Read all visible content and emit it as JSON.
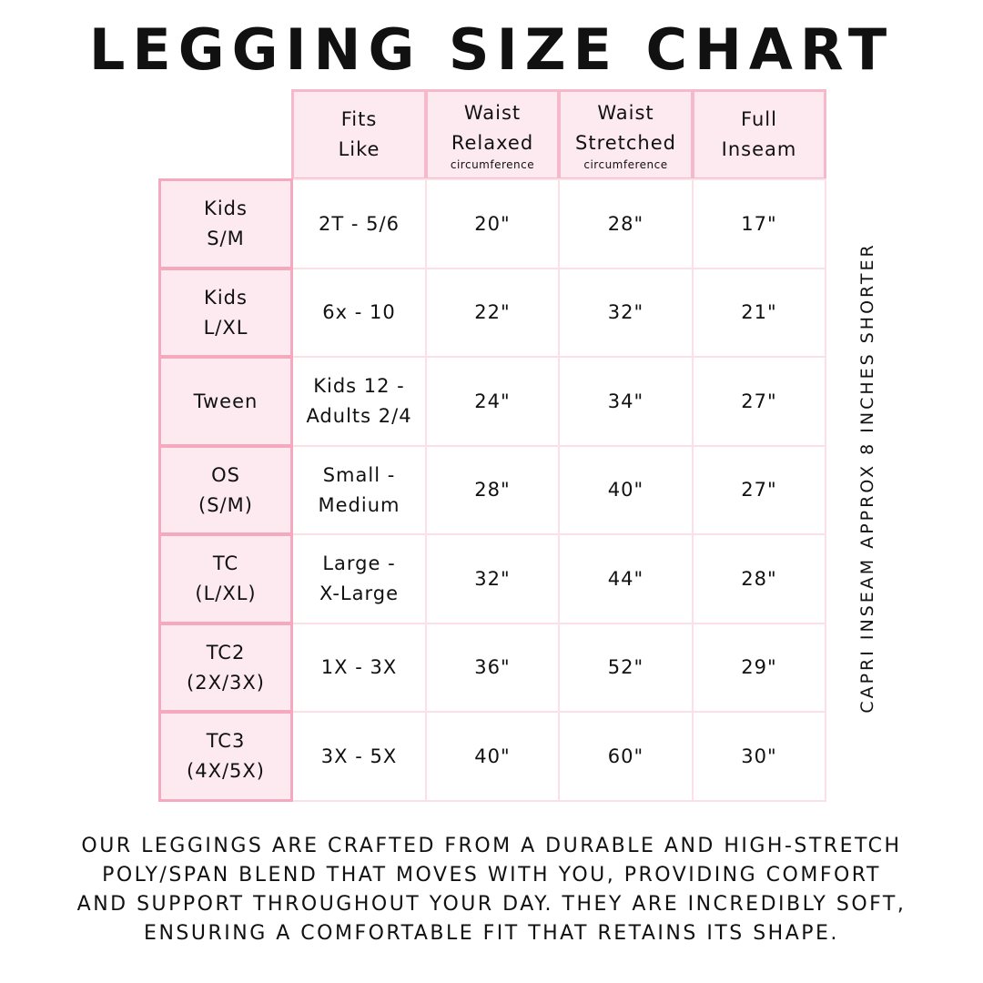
{
  "title": "LEGGING SIZE CHART",
  "headers": [
    {
      "label": "Fits\nLike",
      "sub": ""
    },
    {
      "label": "Waist\nRelaxed",
      "sub": "circumference"
    },
    {
      "label": "Waist\nStretched",
      "sub": "circumference"
    },
    {
      "label": "Full\nInseam",
      "sub": ""
    }
  ],
  "rows": [
    {
      "size": "Kids\nS/M",
      "fits": "2T - 5/6",
      "relaxed": "20\"",
      "stretched": "28\"",
      "inseam": "17\""
    },
    {
      "size": "Kids\nL/XL",
      "fits": "6x - 10",
      "relaxed": "22\"",
      "stretched": "32\"",
      "inseam": "21\""
    },
    {
      "size": "Tween",
      "fits": "Kids 12 -\nAdults 2/4",
      "relaxed": "24\"",
      "stretched": "34\"",
      "inseam": "27\""
    },
    {
      "size": "OS\n(S/M)",
      "fits": "Small -\nMedium",
      "relaxed": "28\"",
      "stretched": "40\"",
      "inseam": "27\""
    },
    {
      "size": "TC\n(L/XL)",
      "fits": "Large -\nX-Large",
      "relaxed": "32\"",
      "stretched": "44\"",
      "inseam": "28\""
    },
    {
      "size": "TC2\n(2X/3X)",
      "fits": "1X - 3X",
      "relaxed": "36\"",
      "stretched": "52\"",
      "inseam": "29\""
    },
    {
      "size": "TC3\n(4X/5X)",
      "fits": "3X - 5X",
      "relaxed": "40\"",
      "stretched": "60\"",
      "inseam": "30\""
    }
  ],
  "side_note": "CAPRI INSEAM APPROX 8 INCHES SHORTER",
  "footer_lines": [
    "Our leggings are crafted from a durable and high-stretch",
    "poly/span blend that moves with you, providing comfort",
    "and support throughout your day. They are incredibly soft,",
    "ensuring a comfortable fit that retains its shape."
  ],
  "colors": {
    "header_bg": "#fdeaf0",
    "border": "#f6b9cb"
  }
}
